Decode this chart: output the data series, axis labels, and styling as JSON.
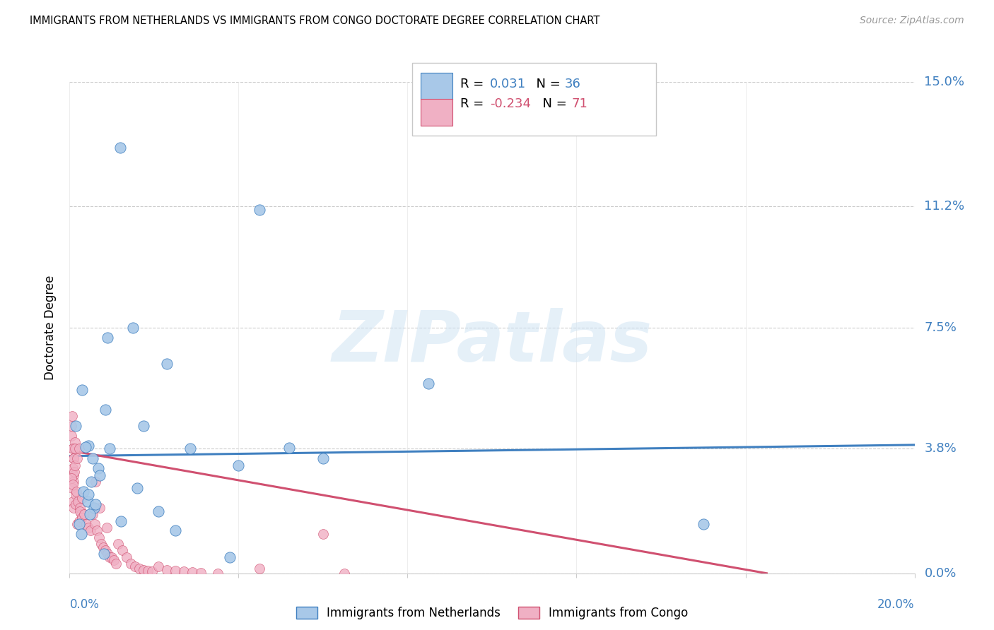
{
  "title": "IMMIGRANTS FROM NETHERLANDS VS IMMIGRANTS FROM CONGO DOCTORATE DEGREE CORRELATION CHART",
  "source": "Source: ZipAtlas.com",
  "ylabel": "Doctorate Degree",
  "ytick_vals": [
    0.0,
    3.8,
    7.5,
    11.2,
    15.0
  ],
  "xlim": [
    0.0,
    20.0
  ],
  "ylim": [
    0.0,
    15.0
  ],
  "legend_label1": "Immigrants from Netherlands",
  "legend_label2": "Immigrants from Congo",
  "R1": "0.031",
  "N1": "36",
  "R2": "-0.234",
  "N2": "71",
  "color1": "#a8c8e8",
  "color2": "#f0b0c4",
  "line_color1": "#4080c0",
  "line_color2": "#d05070",
  "r_color1": "#4080c0",
  "r_color2": "#d05070",
  "watermark_text": "ZIPatlas",
  "nl_line_x": [
    0.0,
    20.0
  ],
  "nl_line_y": [
    3.58,
    3.92
  ],
  "cg_line_x": [
    0.0,
    16.5
  ],
  "cg_line_y": [
    3.75,
    0.0
  ],
  "netherlands_x": [
    1.2,
    0.9,
    4.5,
    1.5,
    2.3,
    0.3,
    0.45,
    0.38,
    0.55,
    0.68,
    0.85,
    0.32,
    0.95,
    0.42,
    0.58,
    0.48,
    1.75,
    2.85,
    6.0,
    8.5,
    4.0,
    0.22,
    0.28,
    0.52,
    0.44,
    0.72,
    1.22,
    2.5,
    3.8,
    0.62,
    0.82,
    5.2,
    2.1,
    1.6,
    15.0,
    0.15
  ],
  "netherlands_y": [
    13.0,
    7.2,
    11.1,
    7.5,
    6.4,
    5.6,
    3.9,
    3.85,
    3.5,
    3.2,
    5.0,
    2.5,
    3.8,
    2.2,
    2.0,
    1.8,
    4.5,
    3.82,
    3.5,
    5.8,
    3.3,
    1.5,
    1.2,
    2.8,
    2.4,
    3.0,
    1.6,
    1.3,
    0.5,
    2.1,
    0.6,
    3.83,
    1.9,
    2.6,
    1.5,
    4.5
  ],
  "congo_x": [
    0.05,
    0.08,
    0.1,
    0.05,
    0.07,
    0.06,
    0.09,
    0.1,
    0.12,
    0.08,
    0.06,
    0.07,
    0.09,
    0.11,
    0.05,
    0.08,
    0.12,
    0.15,
    0.1,
    0.13,
    0.18,
    0.22,
    0.14,
    0.16,
    0.2,
    0.25,
    0.28,
    0.3,
    0.35,
    0.18,
    0.22,
    0.25,
    0.3,
    0.35,
    0.4,
    0.45,
    0.5,
    0.55,
    0.6,
    0.65,
    0.7,
    0.75,
    0.8,
    0.85,
    0.9,
    0.95,
    1.0,
    1.05,
    1.1,
    0.62,
    0.72,
    0.88,
    1.15,
    1.25,
    1.35,
    1.45,
    1.55,
    1.65,
    1.75,
    1.85,
    1.95,
    2.1,
    2.3,
    2.5,
    2.7,
    2.9,
    3.1,
    3.5,
    6.5,
    6.0,
    4.5
  ],
  "congo_y": [
    4.2,
    3.8,
    3.5,
    4.5,
    3.2,
    4.8,
    3.0,
    2.8,
    4.0,
    3.8,
    2.6,
    2.2,
    3.5,
    3.1,
    2.9,
    2.7,
    3.8,
    2.4,
    2.0,
    3.3,
    3.5,
    3.8,
    2.1,
    2.5,
    2.2,
    2.0,
    1.8,
    2.3,
    1.8,
    1.5,
    1.6,
    1.9,
    1.7,
    1.8,
    1.5,
    1.4,
    1.3,
    1.8,
    1.5,
    1.3,
    1.1,
    0.9,
    0.8,
    0.7,
    0.6,
    0.5,
    0.5,
    0.4,
    0.3,
    2.8,
    2.0,
    1.4,
    0.9,
    0.7,
    0.5,
    0.3,
    0.2,
    0.15,
    0.1,
    0.08,
    0.05,
    0.2,
    0.1,
    0.08,
    0.05,
    0.03,
    0.02,
    0.0,
    0.0,
    1.2,
    0.15
  ]
}
